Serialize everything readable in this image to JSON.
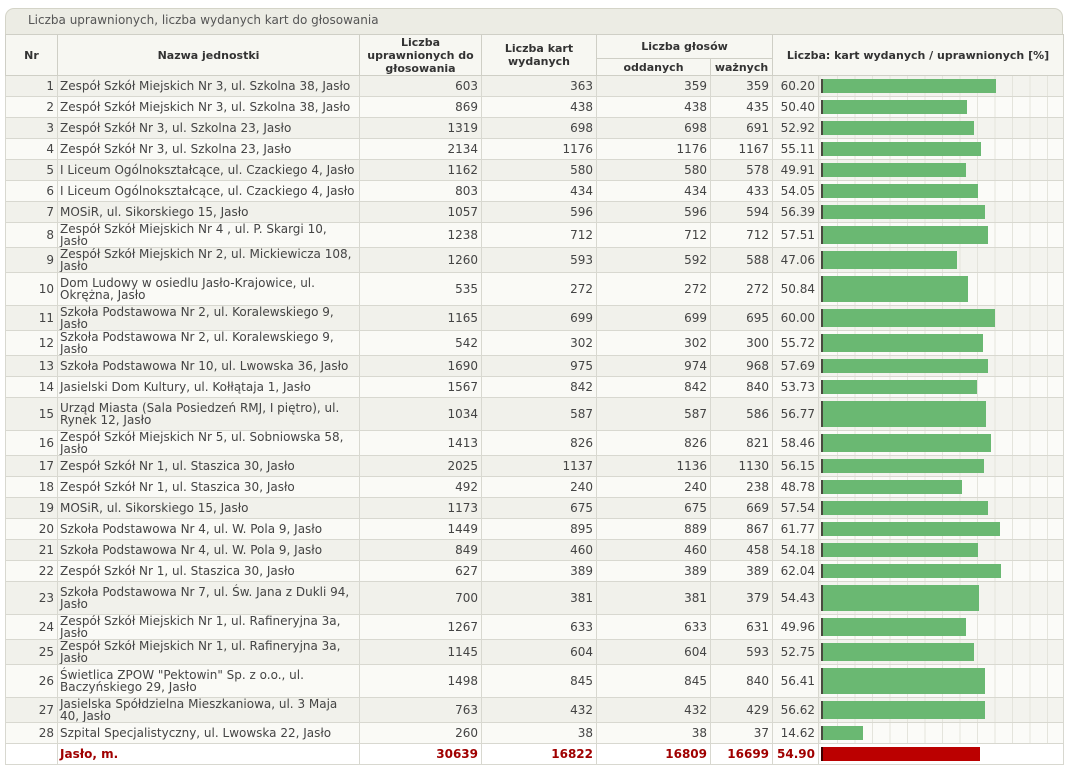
{
  "panel": {
    "title": "Liczba uprawnionych, liczba wydanych kart do głosowania"
  },
  "headers": {
    "nr": "Nr",
    "name": "Nazwa jednostki",
    "eligible": "Liczba uprawnionych do głosowania",
    "issued": "Liczba kart wydanych",
    "votes": "Liczba głosów",
    "cast": "oddanych",
    "valid": "ważnych",
    "ratio": "Liczba: kart wydanych / uprawnionych [%]"
  },
  "colors": {
    "bar": "#6ab872",
    "total_bar": "#bb0000",
    "total_text": "#a00000"
  },
  "rows": [
    {
      "nr": "1",
      "name": "Zespół Szkół Miejskich Nr 3, ul. Szkolna 38, Jasło",
      "eligible": "603",
      "issued": "363",
      "cast": "359",
      "valid": "359",
      "pct": "60.20",
      "value": 60.2
    },
    {
      "nr": "2",
      "name": "Zespół Szkół Miejskich Nr 3, ul. Szkolna 38, Jasło",
      "eligible": "869",
      "issued": "438",
      "cast": "438",
      "valid": "435",
      "pct": "50.40",
      "value": 50.4
    },
    {
      "nr": "3",
      "name": "Zespół Szkół Nr 3, ul. Szkolna 23, Jasło",
      "eligible": "1319",
      "issued": "698",
      "cast": "698",
      "valid": "691",
      "pct": "52.92",
      "value": 52.92
    },
    {
      "nr": "4",
      "name": "Zespół Szkół Nr 3, ul. Szkolna 23, Jasło",
      "eligible": "2134",
      "issued": "1176",
      "cast": "1176",
      "valid": "1167",
      "pct": "55.11",
      "value": 55.11
    },
    {
      "nr": "5",
      "name": "I Liceum Ogólnokształcące, ul. Czackiego 4, Jasło",
      "eligible": "1162",
      "issued": "580",
      "cast": "580",
      "valid": "578",
      "pct": "49.91",
      "value": 49.91
    },
    {
      "nr": "6",
      "name": "I Liceum Ogólnokształcące, ul. Czackiego 4, Jasło",
      "eligible": "803",
      "issued": "434",
      "cast": "434",
      "valid": "433",
      "pct": "54.05",
      "value": 54.05
    },
    {
      "nr": "7",
      "name": "MOSiR, ul. Sikorskiego 15, Jasło",
      "eligible": "1057",
      "issued": "596",
      "cast": "596",
      "valid": "594",
      "pct": "56.39",
      "value": 56.39
    },
    {
      "nr": "8",
      "name": "Zespół Szkół Miejskich Nr 4 , ul. P. Skargi 10, Jasło",
      "eligible": "1238",
      "issued": "712",
      "cast": "712",
      "valid": "712",
      "pct": "57.51",
      "value": 57.51
    },
    {
      "nr": "9",
      "name": "Zespół Szkół Miejskich Nr 2, ul. Mickiewicza 108, Jasło",
      "eligible": "1260",
      "issued": "593",
      "cast": "592",
      "valid": "588",
      "pct": "47.06",
      "value": 47.06
    },
    {
      "nr": "10",
      "name": "Dom Ludowy w osiedlu Jasło-Krajowice, ul. Okrężna, Jasło",
      "eligible": "535",
      "issued": "272",
      "cast": "272",
      "valid": "272",
      "pct": "50.84",
      "value": 50.84,
      "tall": true
    },
    {
      "nr": "11",
      "name": "Szkoła Podstawowa Nr 2, ul. Koralewskiego 9, Jasło",
      "eligible": "1165",
      "issued": "699",
      "cast": "699",
      "valid": "695",
      "pct": "60.00",
      "value": 60.0
    },
    {
      "nr": "12",
      "name": "Szkoła Podstawowa Nr 2, ul. Koralewskiego 9, Jasło",
      "eligible": "542",
      "issued": "302",
      "cast": "302",
      "valid": "300",
      "pct": "55.72",
      "value": 55.72
    },
    {
      "nr": "13",
      "name": "Szkoła Podstawowa Nr 10, ul. Lwowska 36, Jasło",
      "eligible": "1690",
      "issued": "975",
      "cast": "974",
      "valid": "968",
      "pct": "57.69",
      "value": 57.69
    },
    {
      "nr": "14",
      "name": "Jasielski Dom Kultury, ul. Kołłątaja 1, Jasło",
      "eligible": "1567",
      "issued": "842",
      "cast": "842",
      "valid": "840",
      "pct": "53.73",
      "value": 53.73
    },
    {
      "nr": "15",
      "name": "Urząd Miasta (Sala Posiedzeń RMJ, I piętro), ul. Rynek 12, Jasło",
      "eligible": "1034",
      "issued": "587",
      "cast": "587",
      "valid": "586",
      "pct": "56.77",
      "value": 56.77,
      "tall": true
    },
    {
      "nr": "16",
      "name": "Zespół Szkół Miejskich Nr 5, ul. Sobniowska 58, Jasło",
      "eligible": "1413",
      "issued": "826",
      "cast": "826",
      "valid": "821",
      "pct": "58.46",
      "value": 58.46
    },
    {
      "nr": "17",
      "name": "Zespół Szkół Nr 1, ul. Staszica 30, Jasło",
      "eligible": "2025",
      "issued": "1137",
      "cast": "1136",
      "valid": "1130",
      "pct": "56.15",
      "value": 56.15
    },
    {
      "nr": "18",
      "name": "Zespół Szkół Nr 1, ul. Staszica 30, Jasło",
      "eligible": "492",
      "issued": "240",
      "cast": "240",
      "valid": "238",
      "pct": "48.78",
      "value": 48.78
    },
    {
      "nr": "19",
      "name": "MOSiR, ul. Sikorskiego 15, Jasło",
      "eligible": "1173",
      "issued": "675",
      "cast": "675",
      "valid": "669",
      "pct": "57.54",
      "value": 57.54
    },
    {
      "nr": "20",
      "name": "Szkoła Podstawowa Nr 4, ul. W. Pola 9, Jasło",
      "eligible": "1449",
      "issued": "895",
      "cast": "889",
      "valid": "867",
      "pct": "61.77",
      "value": 61.77
    },
    {
      "nr": "21",
      "name": "Szkoła Podstawowa Nr 4, ul. W. Pola 9, Jasło",
      "eligible": "849",
      "issued": "460",
      "cast": "460",
      "valid": "458",
      "pct": "54.18",
      "value": 54.18
    },
    {
      "nr": "22",
      "name": "Zespół Szkół Nr 1, ul. Staszica 30, Jasło",
      "eligible": "627",
      "issued": "389",
      "cast": "389",
      "valid": "389",
      "pct": "62.04",
      "value": 62.04
    },
    {
      "nr": "23",
      "name": "Szkoła Podstawowa Nr 7, ul. Św. Jana z Dukli 94, Jasło",
      "eligible": "700",
      "issued": "381",
      "cast": "381",
      "valid": "379",
      "pct": "54.43",
      "value": 54.43,
      "tall": true
    },
    {
      "nr": "24",
      "name": "Zespół Szkół Miejskich Nr 1, ul. Rafineryjna 3a, Jasło",
      "eligible": "1267",
      "issued": "633",
      "cast": "633",
      "valid": "631",
      "pct": "49.96",
      "value": 49.96
    },
    {
      "nr": "25",
      "name": "Zespół Szkół Miejskich Nr 1, ul. Rafineryjna 3a, Jasło",
      "eligible": "1145",
      "issued": "604",
      "cast": "604",
      "valid": "593",
      "pct": "52.75",
      "value": 52.75
    },
    {
      "nr": "26",
      "name": "Świetlica ZPOW \"Pektowin\" Sp. z o.o., ul. Baczyńskiego 29, Jasło",
      "eligible": "1498",
      "issued": "845",
      "cast": "845",
      "valid": "840",
      "pct": "56.41",
      "value": 56.41,
      "tall": true
    },
    {
      "nr": "27",
      "name": "Jasielska Spółdzielna Mieszkaniowa, ul. 3 Maja 40, Jasło",
      "eligible": "763",
      "issued": "432",
      "cast": "432",
      "valid": "429",
      "pct": "56.62",
      "value": 56.62
    },
    {
      "nr": "28",
      "name": "Szpital Specjalistyczny, ul. Lwowska 22, Jasło",
      "eligible": "260",
      "issued": "38",
      "cast": "38",
      "valid": "37",
      "pct": "14.62",
      "value": 14.62
    }
  ],
  "total": {
    "nr": "",
    "name": "Jasło, m.",
    "eligible": "30639",
    "issued": "16822",
    "cast": "16809",
    "valid": "16699",
    "pct": "54.90",
    "value": 54.9
  }
}
